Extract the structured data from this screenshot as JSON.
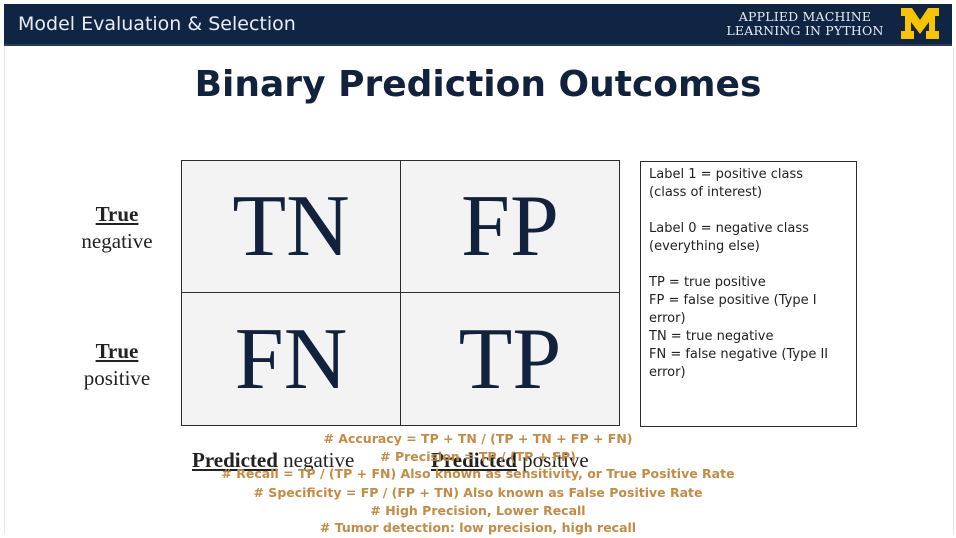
{
  "header": {
    "title": "Model Evaluation & Selection",
    "brand_line1": "APPLIED MACHINE",
    "brand_line2": "LEARNING IN PYTHON",
    "logo": "block-m-logo",
    "bg_color": "#0f2543",
    "logo_color": "#f6c400"
  },
  "slide": {
    "title": "Binary Prediction Outcomes"
  },
  "matrix": {
    "cells": [
      "TN",
      "FP",
      "FN",
      "TP"
    ],
    "rows": [
      {
        "bold": "True",
        "rest": "negative"
      },
      {
        "bold": "True",
        "rest": "positive"
      }
    ],
    "cols": [
      {
        "bold": "Predicted",
        "rest": " negative"
      },
      {
        "bold": "Predicted",
        "rest": " positive"
      }
    ]
  },
  "legend": {
    "lines": [
      "Label 1 = positive class",
      "(class of interest)",
      "Label 0 = negative class",
      "(everything else)",
      "TP = true positive",
      "FP = false positive (Type I",
      "error)",
      "TN = true negative",
      "FN = false negative  (Type II",
      "error)"
    ]
  },
  "notes": [
    "# Accuracy = TP + TN / (TP + TN + FP + FN)",
    "# Precision = TP / (TP + FP)",
    "# Recall = TP / (TP + FN)  Also known as sensitivity, or True Positive Rate",
    "# Specificity = FP / (FP + TN) Also known as False Positive Rate",
    "# High Precision, Lower Recall",
    "# Tumor detection: low precision, high recall"
  ],
  "colors": {
    "notes": "#c48b45",
    "title": "#12213c",
    "cell_bg": "#f3f3f4"
  }
}
